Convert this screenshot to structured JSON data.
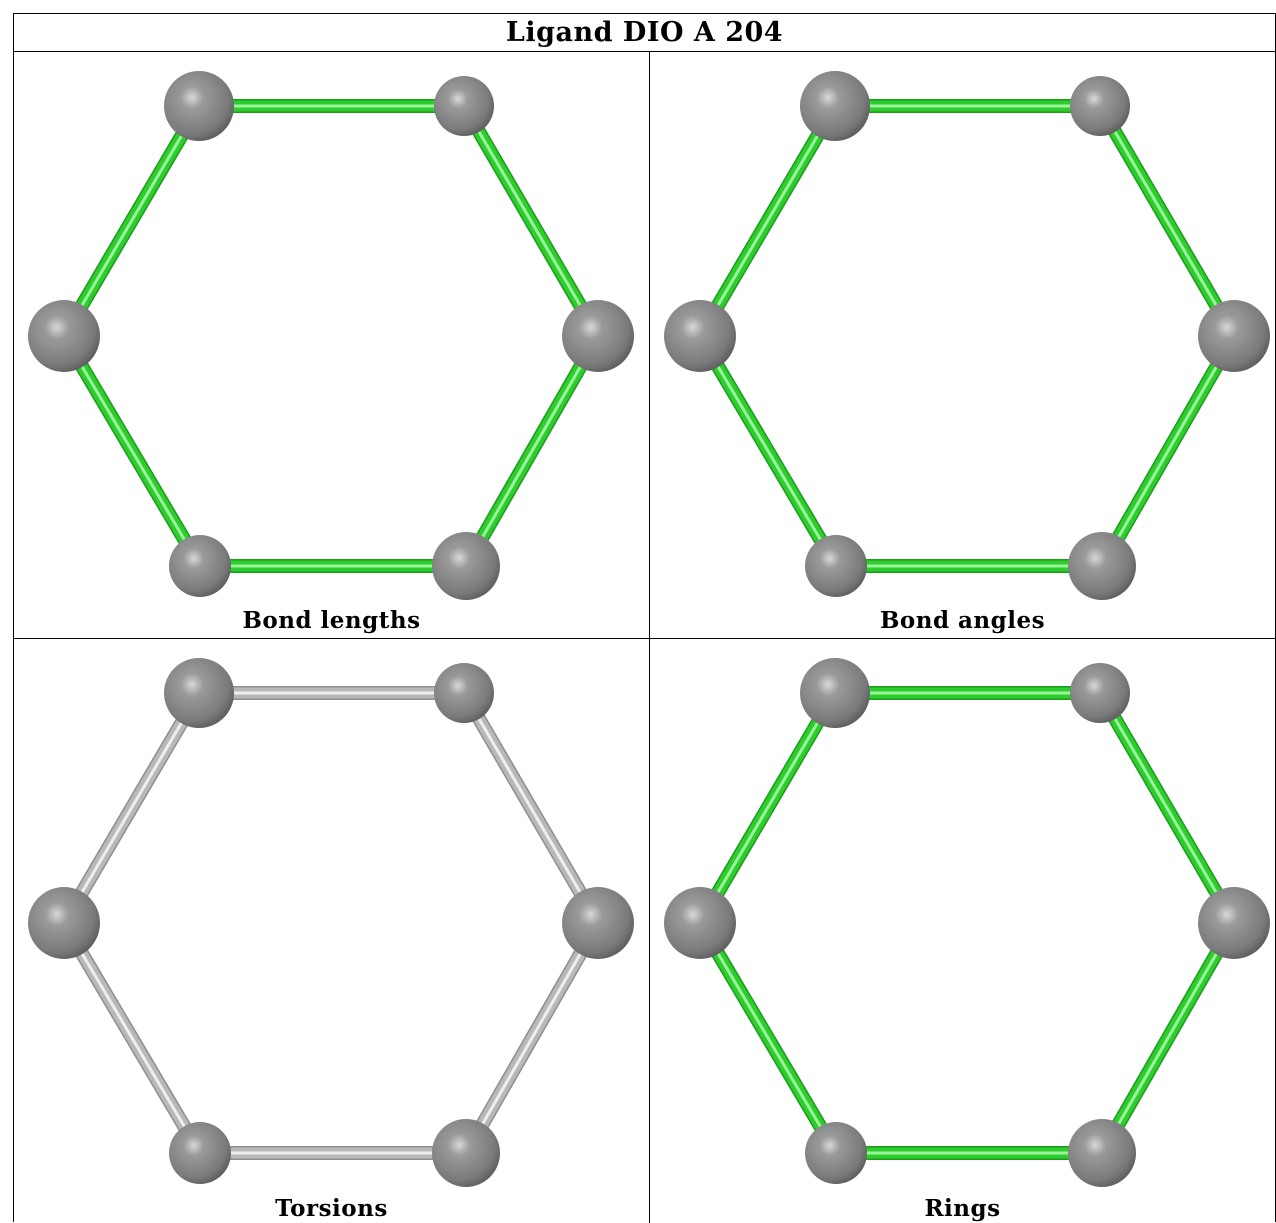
{
  "title": "Ligand DIO A 204",
  "panels": [
    {
      "label": "Bond lengths",
      "bond_style": "green"
    },
    {
      "label": "Bond angles",
      "bond_style": "green"
    },
    {
      "label": "Torsions",
      "bond_style": "gray"
    },
    {
      "label": "Rings",
      "bond_style": "green"
    }
  ],
  "colors": {
    "bond_green": "#2ecc2e",
    "bond_gray": "#b8b8b8",
    "atom": "#7a7a7a"
  }
}
